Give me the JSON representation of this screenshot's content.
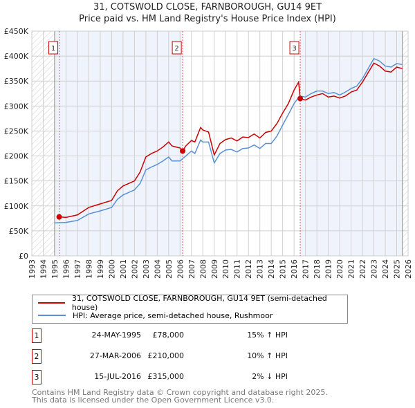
{
  "chart_data": {
    "type": "line",
    "title": "31, COTSWOLD CLOSE, FARNBOROUGH, GU14 9ET",
    "subtitle": "Price paid vs. HM Land Registry's House Price Index (HPI)",
    "xlim": [
      1993,
      2026
    ],
    "ylim": [
      0,
      450000
    ],
    "yticks": [
      {
        "v": 0,
        "label": "£0"
      },
      {
        "v": 50000,
        "label": "£50K"
      },
      {
        "v": 100000,
        "label": "£100K"
      },
      {
        "v": 150000,
        "label": "£150K"
      },
      {
        "v": 200000,
        "label": "£200K"
      },
      {
        "v": 250000,
        "label": "£250K"
      },
      {
        "v": 300000,
        "label": "£300K"
      },
      {
        "v": 350000,
        "label": "£350K"
      },
      {
        "v": 400000,
        "label": "£400K"
      },
      {
        "v": 450000,
        "label": "£450K"
      }
    ],
    "xticks": [
      "1993",
      "1994",
      "1995",
      "1996",
      "1997",
      "1998",
      "1999",
      "2000",
      "2001",
      "2002",
      "2003",
      "2004",
      "2005",
      "2006",
      "2007",
      "2008",
      "2009",
      "2010",
      "2011",
      "2012",
      "2013",
      "2014",
      "2015",
      "2016",
      "2017",
      "2018",
      "2019",
      "2020",
      "2021",
      "2022",
      "2023",
      "2024",
      "2025",
      "2026"
    ],
    "hatched_ranges": [
      [
        1993,
        1995
      ],
      [
        2025.5,
        2026
      ]
    ],
    "shaded_ranges": [
      [
        1995,
        2006.23
      ],
      [
        2016.54,
        2025.5
      ]
    ],
    "series": [
      {
        "name": "31, COTSWOLD CLOSE, FARNBOROUGH, GU14 9ET (semi-detached house)",
        "color": "#cc0000",
        "x": [
          1995.4,
          1996,
          1997,
          1998,
          1999,
          2000,
          2000.5,
          2001,
          2002,
          2002.5,
          2003,
          2003.5,
          2004,
          2004.5,
          2005,
          2005.3,
          2006,
          2006.23,
          2006.5,
          2007,
          2007.3,
          2007.8,
          2008,
          2008.5,
          2009,
          2009.5,
          2010,
          2010.5,
          2011,
          2011.5,
          2012,
          2012.5,
          2013,
          2013.5,
          2014,
          2014.5,
          2015,
          2015.5,
          2016,
          2016.4,
          2016.54,
          2017,
          2017.5,
          2018,
          2018.5,
          2019,
          2019.5,
          2020,
          2020.5,
          2021,
          2021.5,
          2022,
          2022.5,
          2023,
          2023.5,
          2024,
          2024.5,
          2025,
          2025.5
        ],
        "y": [
          78000,
          77000,
          82000,
          97000,
          104000,
          111000,
          130000,
          140000,
          150000,
          168000,
          198000,
          205000,
          210000,
          218000,
          228000,
          220000,
          216000,
          210000,
          220000,
          231000,
          228000,
          257000,
          252000,
          248000,
          202000,
          225000,
          233000,
          236000,
          230000,
          238000,
          237000,
          244000,
          236000,
          247000,
          250000,
          265000,
          286000,
          305000,
          332000,
          348000,
          315000,
          312000,
          318000,
          322000,
          325000,
          318000,
          320000,
          316000,
          320000,
          328000,
          332000,
          348000,
          367000,
          386000,
          380000,
          370000,
          368000,
          378000,
          375000
        ]
      },
      {
        "name": "HPI: Average price, semi-detached house, Rushmoor",
        "color": "#5b8fd4",
        "x": [
          1995,
          1996,
          1997,
          1998,
          1999,
          2000,
          2000.5,
          2001,
          2002,
          2002.5,
          2003,
          2003.5,
          2004,
          2004.5,
          2005,
          2005.3,
          2006,
          2006.5,
          2007,
          2007.3,
          2007.8,
          2008,
          2008.5,
          2009,
          2009.5,
          2010,
          2010.5,
          2011,
          2011.5,
          2012,
          2012.5,
          2013,
          2013.5,
          2014,
          2014.5,
          2015,
          2015.5,
          2016,
          2016.5,
          2017,
          2017.5,
          2018,
          2018.5,
          2019,
          2019.5,
          2020,
          2020.5,
          2021,
          2021.5,
          2022,
          2022.5,
          2023,
          2023.5,
          2024,
          2024.5,
          2025,
          2025.5
        ],
        "y": [
          66000,
          67000,
          71000,
          84000,
          90000,
          97000,
          113000,
          122000,
          132000,
          145000,
          172000,
          178000,
          183000,
          190000,
          198000,
          190000,
          190000,
          200000,
          210000,
          205000,
          232000,
          228000,
          228000,
          186000,
          205000,
          212000,
          213000,
          208000,
          215000,
          216000,
          222000,
          215000,
          225000,
          225000,
          240000,
          262000,
          283000,
          305000,
          320000,
          318000,
          325000,
          330000,
          330000,
          325000,
          327000,
          322000,
          328000,
          335000,
          340000,
          355000,
          375000,
          395000,
          390000,
          380000,
          378000,
          385000,
          383000
        ]
      }
    ],
    "sales": [
      {
        "n": "1",
        "x": 1995.4,
        "y": 78000
      },
      {
        "n": "2",
        "x": 2006.23,
        "y": 210000
      },
      {
        "n": "3",
        "x": 2016.54,
        "y": 315000
      }
    ]
  },
  "legend": {
    "property": "31, COTSWOLD CLOSE, FARNBOROUGH, GU14 9ET (semi-detached house)",
    "hpi": "HPI: Average price, semi-detached house, Rushmoor"
  },
  "transactions": [
    {
      "n": "1",
      "date": "24-MAY-1995",
      "price": "£78,000",
      "hpi": "15% ↑ HPI"
    },
    {
      "n": "2",
      "date": "27-MAR-2006",
      "price": "£210,000",
      "hpi": "10% ↑ HPI"
    },
    {
      "n": "3",
      "date": "15-JUL-2016",
      "price": "£315,000",
      "hpi": "2% ↓ HPI"
    }
  ],
  "footer": {
    "line1": "Contains HM Land Registry data © Crown copyright and database right 2025.",
    "line2": "This data is licensed under the Open Government Licence v3.0."
  }
}
